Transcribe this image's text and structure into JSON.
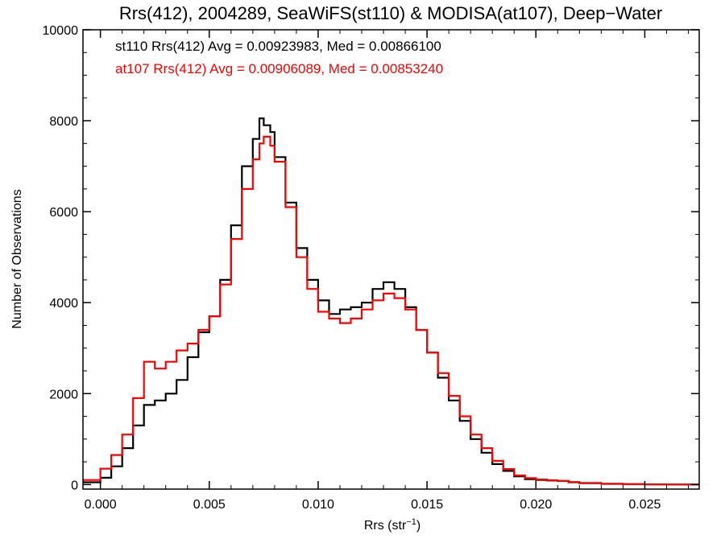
{
  "chart_data": {
    "type": "line",
    "title": "Rrs(412), 2004289, SeaWiFS(st110) & MODISA(at107), Deep−Water",
    "xlabel_base": "Rrs (str",
    "xlabel_sup": "−1",
    "xlabel_close": ")",
    "ylabel": "Number of Observations",
    "xlim": [
      -0.0008,
      0.0275
    ],
    "ylim": [
      -100,
      10000
    ],
    "x_ticks": [
      0.0,
      0.005,
      0.01,
      0.015,
      0.02,
      0.025
    ],
    "x_tick_labels": [
      "0.000",
      "0.005",
      "0.010",
      "0.015",
      "0.020",
      "0.025"
    ],
    "y_ticks": [
      0,
      2000,
      4000,
      6000,
      8000,
      10000
    ],
    "y_tick_labels": [
      "0",
      "2000",
      "4000",
      "6000",
      "8000",
      "10000"
    ],
    "grid": false,
    "legend_placement": "top-left",
    "series": [
      {
        "name": "st110 Rrs(412) Avg = 0.00923983, Med = 0.00866100",
        "color": "#000000",
        "x": [
          -0.0008,
          0.0,
          0.0005,
          0.001,
          0.0015,
          0.002,
          0.0025,
          0.003,
          0.0035,
          0.004,
          0.0045,
          0.005,
          0.0055,
          0.006,
          0.0065,
          0.007,
          0.0073,
          0.0075,
          0.0078,
          0.008,
          0.0085,
          0.009,
          0.0095,
          0.01,
          0.0105,
          0.011,
          0.0115,
          0.012,
          0.0125,
          0.013,
          0.0135,
          0.014,
          0.0145,
          0.015,
          0.0155,
          0.016,
          0.0165,
          0.017,
          0.0175,
          0.018,
          0.0185,
          0.019,
          0.0195,
          0.02,
          0.0205,
          0.021,
          0.0215,
          0.022,
          0.023,
          0.024,
          0.025,
          0.026,
          0.0275
        ],
        "y": [
          50,
          150,
          400,
          800,
          1300,
          1750,
          1850,
          2000,
          2300,
          2800,
          3350,
          3700,
          4500,
          5700,
          7000,
          7600,
          8050,
          7900,
          7750,
          7200,
          6200,
          5200,
          4500,
          4050,
          3750,
          3850,
          3900,
          4000,
          4300,
          4450,
          4300,
          3900,
          3400,
          2900,
          2350,
          1850,
          1400,
          1000,
          700,
          450,
          300,
          180,
          120,
          100,
          90,
          80,
          50,
          30,
          15,
          8,
          3,
          1,
          0
        ]
      },
      {
        "name": "at107 Rrs(412) Avg = 0.00906089, Med = 0.00853240",
        "color": "#ff0000",
        "x": [
          -0.0008,
          0.0,
          0.0005,
          0.001,
          0.0015,
          0.002,
          0.0025,
          0.003,
          0.0035,
          0.004,
          0.0045,
          0.005,
          0.0055,
          0.006,
          0.0065,
          0.007,
          0.0073,
          0.0075,
          0.0078,
          0.008,
          0.0085,
          0.009,
          0.0095,
          0.01,
          0.0105,
          0.011,
          0.0115,
          0.012,
          0.0125,
          0.013,
          0.0135,
          0.014,
          0.0145,
          0.015,
          0.0155,
          0.016,
          0.0165,
          0.017,
          0.0175,
          0.018,
          0.0185,
          0.019,
          0.0195,
          0.02,
          0.0205,
          0.021,
          0.0215,
          0.022,
          0.023,
          0.024,
          0.025,
          0.026,
          0.0275
        ],
        "y": [
          100,
          350,
          650,
          1100,
          1900,
          2700,
          2550,
          2700,
          2950,
          3100,
          3400,
          3700,
          4400,
          5400,
          6500,
          7150,
          7500,
          7650,
          7450,
          7100,
          6100,
          5000,
          4300,
          3800,
          3650,
          3550,
          3650,
          3850,
          4050,
          4200,
          4100,
          3850,
          3400,
          2900,
          2450,
          1950,
          1500,
          1100,
          800,
          520,
          340,
          200,
          140,
          110,
          95,
          80,
          55,
          35,
          18,
          8,
          3,
          1,
          0
        ]
      }
    ]
  }
}
